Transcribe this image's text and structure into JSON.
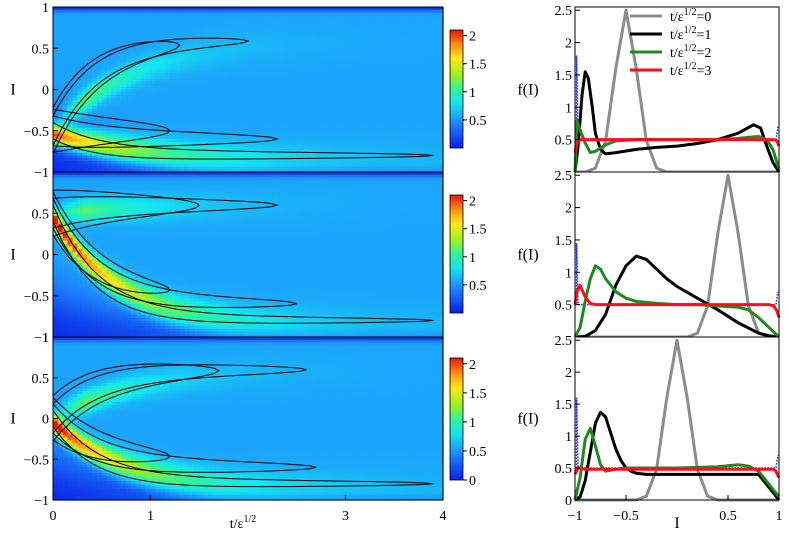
{
  "chart_data": [
    {
      "type": "heatmap",
      "panel": "top-left",
      "ylabel": "I",
      "yticks": [
        "1",
        "0.5",
        "0",
        "-0.5",
        "-1"
      ],
      "xlim": [
        0,
        4
      ],
      "ylim": [
        -1,
        1
      ],
      "colorbar": {
        "ticks": [
          "2",
          "1.5",
          "1",
          "0.5"
        ],
        "range": [
          0,
          2.1
        ]
      },
      "background_value": 0.55,
      "initial_peak_I": -0.5
    },
    {
      "type": "heatmap",
      "panel": "middle-left",
      "ylabel": "I",
      "yticks": [
        "0.5",
        "0",
        "-0.5",
        "-1"
      ],
      "xlim": [
        0,
        4
      ],
      "ylim": [
        -1,
        1
      ],
      "colorbar": {
        "ticks": [
          "2",
          "1.5",
          "1",
          "0.5"
        ],
        "range": [
          0,
          2.1
        ]
      },
      "background_value": 0.55,
      "initial_peak_I": 0.5
    },
    {
      "type": "heatmap",
      "panel": "bottom-left",
      "ylabel": "I",
      "xlabel_main": "t/ε",
      "xlabel_sup": "1/2",
      "xticks": [
        "0",
        "1",
        "3",
        "4"
      ],
      "yticks": [
        "1",
        "0.5",
        "0",
        "-0.5",
        "-1"
      ],
      "xlim": [
        0,
        4
      ],
      "ylim": [
        -1,
        1
      ],
      "colorbar": {
        "ticks": [
          "2",
          "1.5",
          "1",
          "0.5",
          "0"
        ],
        "range": [
          0,
          2.1
        ]
      },
      "background_value": 0.55,
      "initial_peak_I": 0.0
    },
    {
      "type": "line",
      "panel": "top-right",
      "ylabel": "f(I)",
      "yticks": [
        "2.5",
        "2",
        "1.5",
        "1",
        "0.5"
      ],
      "xlim": [
        -1,
        1
      ],
      "ylim": [
        0,
        2.55
      ],
      "legend": {
        "position": "top-right",
        "entries": [
          {
            "main": "t/ε",
            "sup": "1/2",
            "suffix": "=0",
            "color": "#8c8c8c"
          },
          {
            "main": "t/ε",
            "sup": "1/2",
            "suffix": "=1",
            "color": "#000000"
          },
          {
            "main": "t/ε",
            "sup": "1/2",
            "suffix": "=2",
            "color": "#1e8a1e"
          },
          {
            "main": "t/ε",
            "sup": "1/2",
            "suffix": "=3",
            "color": "#ff0a1e"
          }
        ]
      },
      "series": [
        {
          "color": "#8c8c8c",
          "x": [
            -1,
            -0.9,
            -0.8,
            -0.7,
            -0.6,
            -0.5,
            -0.4,
            -0.3,
            -0.2,
            -0.1,
            0,
            0.2,
            0.4,
            0.6,
            0.8,
            1
          ],
          "y": [
            0,
            0,
            0.06,
            0.48,
            1.6,
            2.5,
            1.6,
            0.48,
            0.06,
            0,
            0,
            0,
            0,
            0,
            0,
            0
          ]
        },
        {
          "color": "#000000",
          "x": [
            -1,
            -0.97,
            -0.93,
            -0.9,
            -0.87,
            -0.83,
            -0.8,
            -0.75,
            -0.7,
            -0.6,
            -0.4,
            -0.2,
            0,
            0.2,
            0.4,
            0.6,
            0.75,
            0.82,
            0.88,
            0.94,
            1
          ],
          "y": [
            0,
            0.4,
            1.2,
            1.55,
            1.45,
            1.0,
            0.6,
            0.35,
            0.28,
            0.3,
            0.35,
            0.38,
            0.4,
            0.44,
            0.5,
            0.6,
            0.73,
            0.68,
            0.4,
            0.15,
            0
          ]
        },
        {
          "color": "#1e8a1e",
          "x": [
            -1,
            -0.98,
            -0.95,
            -0.9,
            -0.85,
            -0.8,
            -0.7,
            -0.6,
            -0.4,
            -0.2,
            0,
            0.2,
            0.4,
            0.6,
            0.8,
            0.88,
            0.94,
            1
          ],
          "y": [
            0,
            0.8,
            0.65,
            0.45,
            0.3,
            0.32,
            0.42,
            0.48,
            0.5,
            0.5,
            0.5,
            0.5,
            0.5,
            0.52,
            0.55,
            0.5,
            0.35,
            0.05
          ]
        },
        {
          "color": "#ff0a1e",
          "x": [
            -1,
            -0.98,
            -0.95,
            -0.9,
            -0.5,
            0,
            0.5,
            0.9,
            0.95,
            0.98,
            1
          ],
          "y": [
            0.3,
            0.45,
            0.5,
            0.5,
            0.5,
            0.5,
            0.5,
            0.5,
            0.5,
            0.48,
            0.4
          ]
        }
      ]
    },
    {
      "type": "line",
      "panel": "middle-right",
      "ylabel": "f(I)",
      "yticks": [
        "2.5",
        "2",
        "1.5",
        "1",
        "0.5"
      ],
      "xlim": [
        -1,
        1
      ],
      "ylim": [
        0,
        2.55
      ],
      "series": [
        {
          "color": "#8c8c8c",
          "x": [
            -1,
            -0.6,
            -0.4,
            0,
            0.1,
            0.2,
            0.3,
            0.4,
            0.5,
            0.6,
            0.7,
            0.8,
            0.9,
            1
          ],
          "y": [
            0,
            0,
            0,
            0,
            0,
            0.06,
            0.48,
            1.6,
            2.5,
            1.6,
            0.48,
            0.06,
            0,
            0
          ]
        },
        {
          "color": "#000000",
          "x": [
            -1,
            -0.9,
            -0.8,
            -0.7,
            -0.6,
            -0.5,
            -0.4,
            -0.3,
            -0.2,
            -0.1,
            0,
            0.2,
            0.4,
            0.6,
            0.8,
            0.9,
            1
          ],
          "y": [
            0,
            0.01,
            0.1,
            0.35,
            0.8,
            1.1,
            1.25,
            1.2,
            1.05,
            0.9,
            0.78,
            0.6,
            0.42,
            0.22,
            0.06,
            0.02,
            0
          ]
        },
        {
          "color": "#1e8a1e",
          "x": [
            -1,
            -0.95,
            -0.9,
            -0.85,
            -0.8,
            -0.75,
            -0.7,
            -0.6,
            -0.5,
            -0.4,
            -0.2,
            0,
            0.2,
            0.4,
            0.6,
            0.7,
            0.8,
            0.9,
            1
          ],
          "y": [
            0,
            0.15,
            0.55,
            0.9,
            1.1,
            1.05,
            0.9,
            0.7,
            0.6,
            0.55,
            0.52,
            0.5,
            0.5,
            0.48,
            0.46,
            0.42,
            0.3,
            0.15,
            0
          ]
        },
        {
          "color": "#ff0a1e",
          "x": [
            -1,
            -0.98,
            -0.95,
            -0.9,
            -0.85,
            -0.8,
            -0.5,
            0,
            0.5,
            0.9,
            0.95,
            0.98,
            1
          ],
          "y": [
            0.5,
            0.7,
            0.8,
            0.62,
            0.52,
            0.5,
            0.5,
            0.5,
            0.5,
            0.5,
            0.48,
            0.4,
            0.3
          ]
        }
      ]
    },
    {
      "type": "line",
      "panel": "bottom-right",
      "ylabel": "f(I)",
      "xlabel": "I",
      "xticks": [
        "-1",
        "-0.5",
        "0.5",
        "1"
      ],
      "yticks": [
        "2.5",
        "2",
        "1.5",
        "1",
        "0.5",
        "0"
      ],
      "xlim": [
        -1,
        1
      ],
      "ylim": [
        0,
        2.55
      ],
      "series": [
        {
          "color": "#8c8c8c",
          "x": [
            -1,
            -0.5,
            -0.4,
            -0.3,
            -0.2,
            -0.1,
            0,
            0.1,
            0.2,
            0.3,
            0.4,
            0.5,
            1
          ],
          "y": [
            0,
            0,
            0,
            0.06,
            0.48,
            1.6,
            2.5,
            1.6,
            0.48,
            0.06,
            0,
            0,
            0
          ]
        },
        {
          "color": "#000000",
          "x": [
            -1,
            -0.95,
            -0.9,
            -0.85,
            -0.8,
            -0.75,
            -0.7,
            -0.65,
            -0.6,
            -0.55,
            -0.5,
            -0.45,
            -0.4,
            -0.3,
            -0.2,
            -0.1,
            0,
            0.2,
            0.4,
            0.6,
            0.8,
            1
          ],
          "y": [
            0,
            0.05,
            0.3,
            0.75,
            1.2,
            1.37,
            1.3,
            1.05,
            0.8,
            0.62,
            0.5,
            0.45,
            0.42,
            0.4,
            0.4,
            0.4,
            0.4,
            0.4,
            0.4,
            0.4,
            0.4,
            0
          ]
        },
        {
          "color": "#1e8a1e",
          "x": [
            -1,
            -0.95,
            -0.9,
            -0.85,
            -0.8,
            -0.75,
            -0.7,
            -0.6,
            -0.5,
            -0.2,
            0,
            0.4,
            0.6,
            0.7,
            0.8,
            0.9,
            1
          ],
          "y": [
            0,
            0.35,
            0.95,
            1.12,
            0.85,
            0.55,
            0.45,
            0.48,
            0.5,
            0.5,
            0.5,
            0.52,
            0.55,
            0.53,
            0.45,
            0.25,
            0.05
          ]
        },
        {
          "color": "#ff0a1e",
          "x": [
            -1,
            -0.97,
            -0.95,
            -0.9,
            -0.5,
            0,
            0.5,
            0.9,
            0.95,
            0.97,
            1
          ],
          "y": [
            0.4,
            0.5,
            0.5,
            0.48,
            0.48,
            0.48,
            0.48,
            0.48,
            0.48,
            0.45,
            0.35
          ]
        }
      ]
    }
  ]
}
